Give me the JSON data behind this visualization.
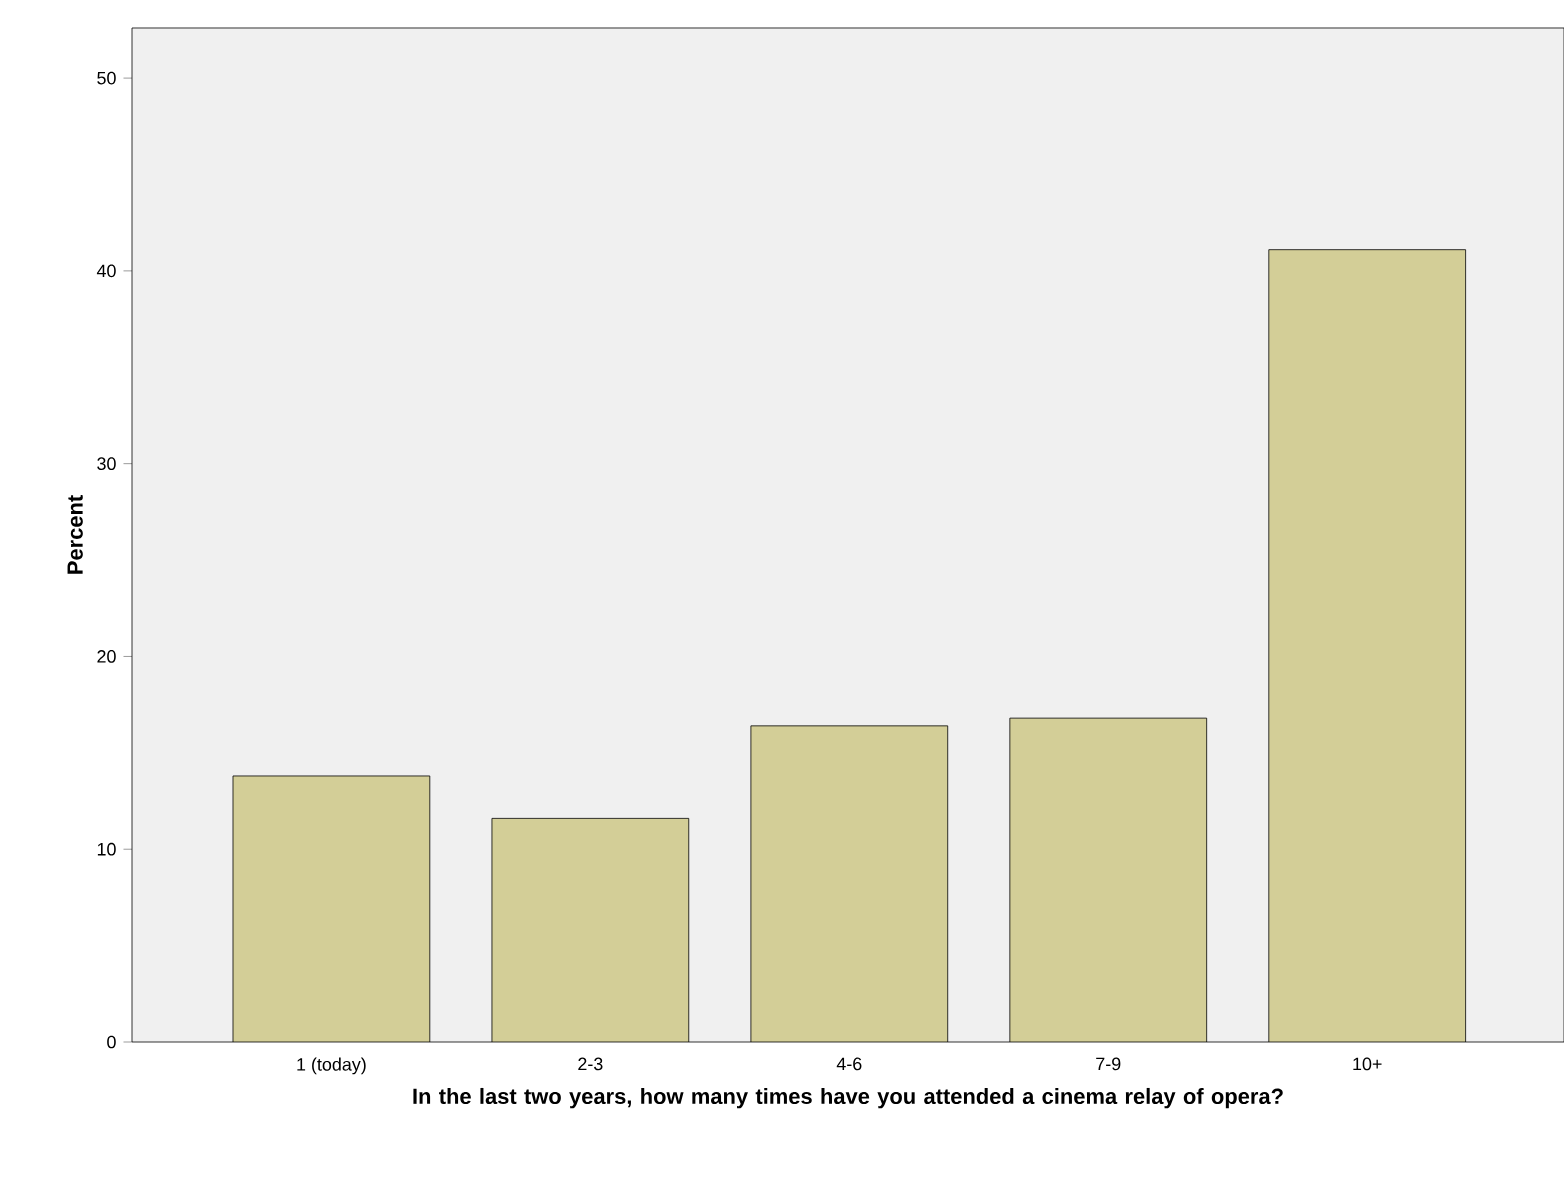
{
  "chart_data": {
    "type": "bar",
    "xlabel": "In the last two years, how many times have you attended a cinema relay of opera?",
    "ylabel": "Percent",
    "categories": [
      "1 (today)",
      "2-3",
      "4-6",
      "7-9",
      "10+"
    ],
    "values": [
      13.8,
      11.6,
      16.4,
      16.8,
      41.1
    ],
    "color": "#d3ce97",
    "ylim": [
      0,
      52.6
    ],
    "yticks": [
      0,
      10,
      20,
      30,
      40,
      50
    ],
    "grid": false
  }
}
